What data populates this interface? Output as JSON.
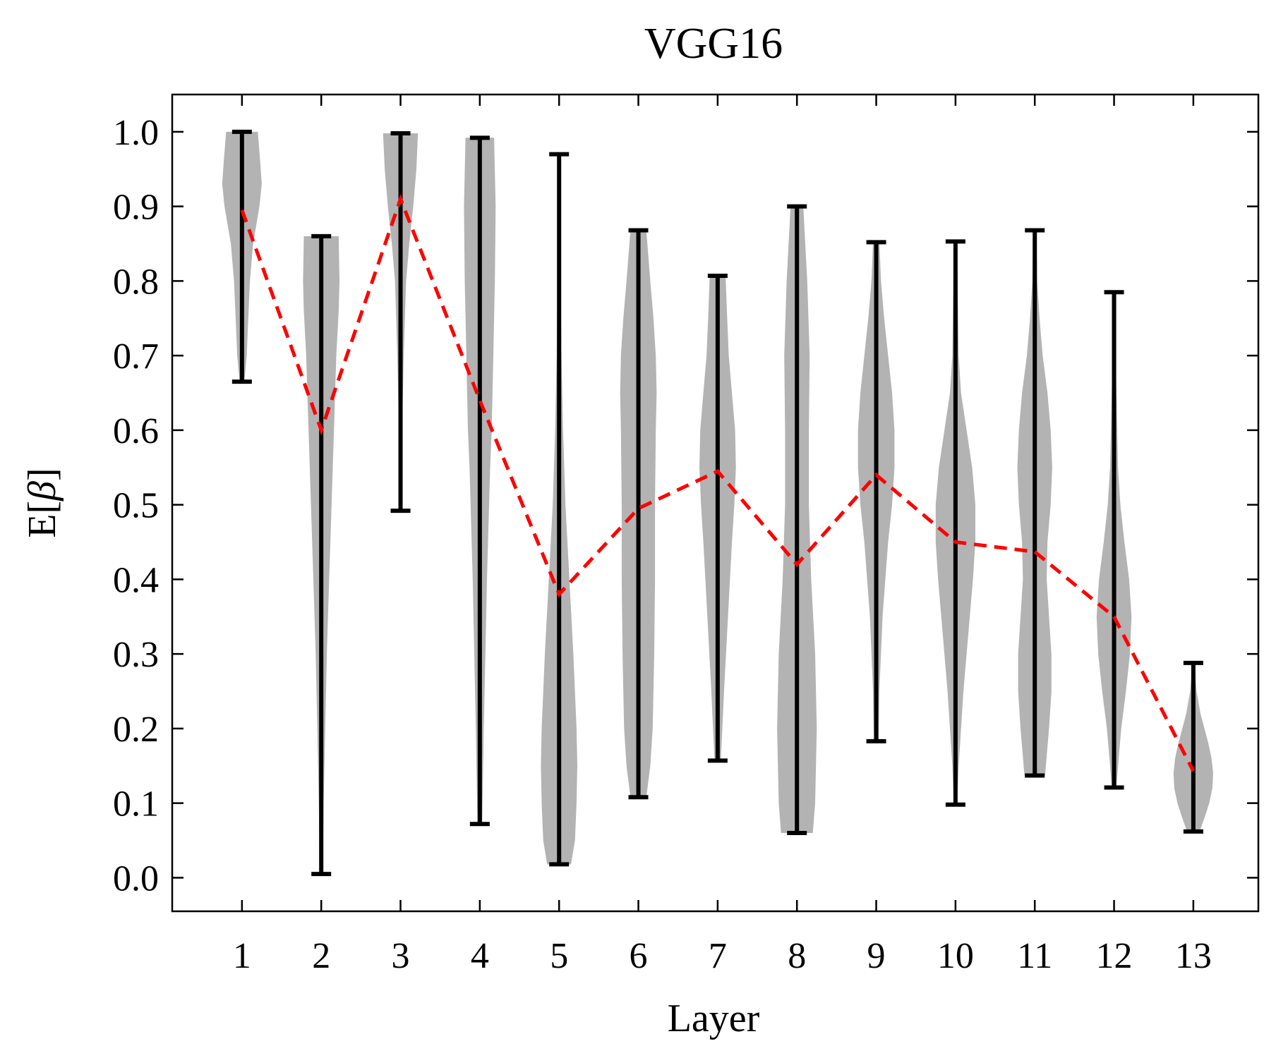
{
  "chart_data": {
    "type": "violin",
    "title": "VGG16",
    "xlabel": "Layer",
    "ylabel": "E[β]",
    "ylabel_prefix": "E[",
    "ylabel_symbol": "β",
    "ylabel_suffix": "]",
    "ylim": [
      -0.045,
      1.05
    ],
    "xlim": [
      0.12,
      13.82
    ],
    "yticks": [
      "0.0",
      "0.1",
      "0.2",
      "0.3",
      "0.4",
      "0.5",
      "0.6",
      "0.7",
      "0.8",
      "0.9",
      "1.0"
    ],
    "categories": [
      "1",
      "2",
      "3",
      "4",
      "5",
      "6",
      "7",
      "8",
      "9",
      "10",
      "11",
      "12",
      "13"
    ],
    "grid": false,
    "colors": {
      "violin": "#b3b3b3",
      "whisker": "#000000",
      "mean_line": "#ff0000"
    },
    "layers": [
      {
        "layer": 1,
        "min": 0.665,
        "max": 1.0,
        "mean": 0.895
      },
      {
        "layer": 2,
        "min": 0.005,
        "max": 0.86,
        "mean": 0.6
      },
      {
        "layer": 3,
        "min": 0.492,
        "max": 0.998,
        "mean": 0.91
      },
      {
        "layer": 4,
        "min": 0.072,
        "max": 0.992,
        "mean": 0.64
      },
      {
        "layer": 5,
        "min": 0.018,
        "max": 0.97,
        "mean": 0.38
      },
      {
        "layer": 6,
        "min": 0.108,
        "max": 0.868,
        "mean": 0.495
      },
      {
        "layer": 7,
        "min": 0.157,
        "max": 0.807,
        "mean": 0.545
      },
      {
        "layer": 8,
        "min": 0.06,
        "max": 0.9,
        "mean": 0.42
      },
      {
        "layer": 9,
        "min": 0.183,
        "max": 0.852,
        "mean": 0.54
      },
      {
        "layer": 10,
        "min": 0.098,
        "max": 0.853,
        "mean": 0.45
      },
      {
        "layer": 11,
        "min": 0.137,
        "max": 0.868,
        "mean": 0.437
      },
      {
        "layer": 12,
        "min": 0.121,
        "max": 0.785,
        "mean": 0.35
      },
      {
        "layer": 13,
        "min": 0.062,
        "max": 0.288,
        "mean": 0.143
      }
    ],
    "density_profiles": [
      {
        "layer": 1,
        "y": [
          0.665,
          0.7,
          0.75,
          0.8,
          0.85,
          0.9,
          0.93,
          0.96,
          1.0
        ],
        "w": [
          0.03,
          0.06,
          0.08,
          0.1,
          0.14,
          0.22,
          0.25,
          0.23,
          0.2
        ]
      },
      {
        "layer": 2,
        "y": [
          0.005,
          0.1,
          0.2,
          0.3,
          0.4,
          0.5,
          0.6,
          0.7,
          0.76,
          0.8,
          0.86
        ],
        "w": [
          0.02,
          0.03,
          0.05,
          0.07,
          0.1,
          0.13,
          0.16,
          0.19,
          0.22,
          0.23,
          0.22
        ]
      },
      {
        "layer": 3,
        "y": [
          0.492,
          0.6,
          0.7,
          0.8,
          0.85,
          0.9,
          0.95,
          0.998
        ],
        "w": [
          0.015,
          0.02,
          0.04,
          0.07,
          0.11,
          0.16,
          0.2,
          0.22
        ]
      },
      {
        "layer": 4,
        "y": [
          0.072,
          0.2,
          0.4,
          0.55,
          0.6,
          0.7,
          0.8,
          0.9,
          0.992
        ],
        "w": [
          0.03,
          0.05,
          0.09,
          0.13,
          0.15,
          0.17,
          0.19,
          0.2,
          0.18
        ]
      },
      {
        "layer": 5,
        "y": [
          0.018,
          0.05,
          0.1,
          0.15,
          0.2,
          0.3,
          0.4,
          0.5,
          0.6,
          0.7,
          0.8,
          0.9,
          0.97
        ],
        "w": [
          0.15,
          0.2,
          0.22,
          0.23,
          0.22,
          0.18,
          0.13,
          0.08,
          0.05,
          0.03,
          0.02,
          0.02,
          0.015
        ]
      },
      {
        "layer": 6,
        "y": [
          0.108,
          0.15,
          0.2,
          0.3,
          0.4,
          0.5,
          0.6,
          0.65,
          0.7,
          0.75,
          0.8,
          0.868
        ],
        "w": [
          0.1,
          0.15,
          0.18,
          0.2,
          0.21,
          0.21,
          0.22,
          0.23,
          0.22,
          0.19,
          0.15,
          0.1
        ]
      },
      {
        "layer": 7,
        "y": [
          0.157,
          0.25,
          0.35,
          0.45,
          0.5,
          0.55,
          0.6,
          0.65,
          0.7,
          0.75,
          0.807
        ],
        "w": [
          0.04,
          0.08,
          0.13,
          0.18,
          0.21,
          0.23,
          0.22,
          0.18,
          0.14,
          0.12,
          0.1
        ]
      },
      {
        "layer": 8,
        "y": [
          0.06,
          0.1,
          0.2,
          0.3,
          0.4,
          0.5,
          0.6,
          0.7,
          0.8,
          0.9
        ],
        "w": [
          0.2,
          0.23,
          0.25,
          0.23,
          0.18,
          0.15,
          0.15,
          0.16,
          0.13,
          0.08
        ]
      },
      {
        "layer": 9,
        "y": [
          0.183,
          0.25,
          0.35,
          0.45,
          0.5,
          0.55,
          0.6,
          0.65,
          0.7,
          0.75,
          0.8,
          0.852
        ],
        "w": [
          0.03,
          0.04,
          0.08,
          0.15,
          0.2,
          0.23,
          0.23,
          0.2,
          0.15,
          0.1,
          0.06,
          0.04
        ]
      },
      {
        "layer": 10,
        "y": [
          0.098,
          0.15,
          0.25,
          0.35,
          0.4,
          0.45,
          0.5,
          0.55,
          0.6,
          0.65,
          0.7,
          0.853
        ],
        "w": [
          0.02,
          0.04,
          0.1,
          0.18,
          0.22,
          0.25,
          0.25,
          0.21,
          0.14,
          0.07,
          0.04,
          0.02
        ]
      },
      {
        "layer": 11,
        "y": [
          0.137,
          0.2,
          0.25,
          0.3,
          0.35,
          0.4,
          0.45,
          0.5,
          0.55,
          0.6,
          0.65,
          0.7,
          0.75,
          0.8,
          0.868
        ],
        "w": [
          0.13,
          0.18,
          0.21,
          0.21,
          0.18,
          0.15,
          0.16,
          0.2,
          0.22,
          0.2,
          0.16,
          0.1,
          0.06,
          0.03,
          0.02
        ]
      },
      {
        "layer": 12,
        "y": [
          0.121,
          0.15,
          0.2,
          0.25,
          0.3,
          0.35,
          0.4,
          0.45,
          0.5,
          0.55,
          0.6,
          0.65,
          0.7,
          0.785
        ],
        "w": [
          0.03,
          0.05,
          0.09,
          0.15,
          0.2,
          0.22,
          0.19,
          0.13,
          0.08,
          0.05,
          0.04,
          0.03,
          0.02,
          0.01
        ]
      },
      {
        "layer": 13,
        "y": [
          0.062,
          0.08,
          0.1,
          0.12,
          0.14,
          0.16,
          0.18,
          0.2,
          0.22,
          0.25,
          0.288
        ],
        "w": [
          0.08,
          0.14,
          0.2,
          0.24,
          0.25,
          0.23,
          0.19,
          0.14,
          0.09,
          0.04,
          0.01
        ]
      }
    ]
  }
}
